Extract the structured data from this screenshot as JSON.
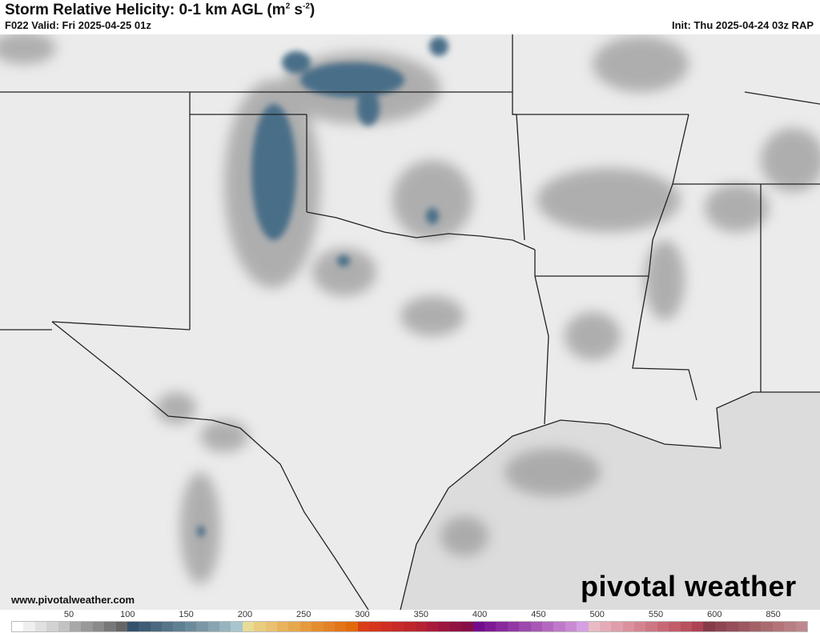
{
  "header": {
    "title": "Storm Relative Helicity: 0-1 km AGL (m",
    "title_unit_sup1": "2",
    "title_unit_mid": " s",
    "title_unit_sup2": "-2",
    "title_close": ")",
    "valid": "F022 Valid: Fri 2025-04-25 01z",
    "init": "Init: Thu 2025-04-24 03z RAP"
  },
  "footer": {
    "url": "www.pivotalweather.com",
    "logo": "pivotal weather"
  },
  "colorbar": {
    "tick_labels": [
      "50",
      "100",
      "150",
      "200",
      "250",
      "300",
      "350",
      "400",
      "450",
      "500",
      "550",
      "600",
      "850"
    ],
    "colors": [
      "#ffffff",
      "#efefef",
      "#e0e0e0",
      "#d2d2d2",
      "#c2c2c2",
      "#a8a8a8",
      "#999999",
      "#8a8a8a",
      "#787878",
      "#666666",
      "#34526b",
      "#3f5d77",
      "#4a6880",
      "#557488",
      "#5f7f92",
      "#6b8b9c",
      "#7a97a6",
      "#88a5b1",
      "#97b4bd",
      "#a8c6cf",
      "#e8dc96",
      "#e9cc7e",
      "#e9c170",
      "#e8b35c",
      "#e6a84d",
      "#e59a3e",
      "#e38d30",
      "#e48126",
      "#e2741a",
      "#e06a0b",
      "#d93d1a",
      "#d5361c",
      "#cf2f22",
      "#c72a28",
      "#be262c",
      "#b52231",
      "#a81c3a",
      "#9c173f",
      "#911343",
      "#870f46",
      "#730c8d",
      "#7e1a94",
      "#882a9c",
      "#9238a4",
      "#9c48ad",
      "#a857b6",
      "#b467c0",
      "#bf79c9",
      "#c98ad1",
      "#d69fe3",
      "#e8bcc2",
      "#e5acb7",
      "#df9ea9",
      "#da919d",
      "#d48490",
      "#ce7683",
      "#c86877",
      "#c25b6a",
      "#b9505e",
      "#ad4354",
      "#863b48",
      "#8e4552",
      "#964e58",
      "#9c5760",
      "#a46168",
      "#aa6b70",
      "#b27478",
      "#b77e83",
      "#bd888d"
    ]
  },
  "map": {
    "land_color": "#e6e6e6",
    "gulf_color": "#dcdcdc",
    "high_srh_color": "#4a6e88",
    "border_color": "#222222"
  }
}
